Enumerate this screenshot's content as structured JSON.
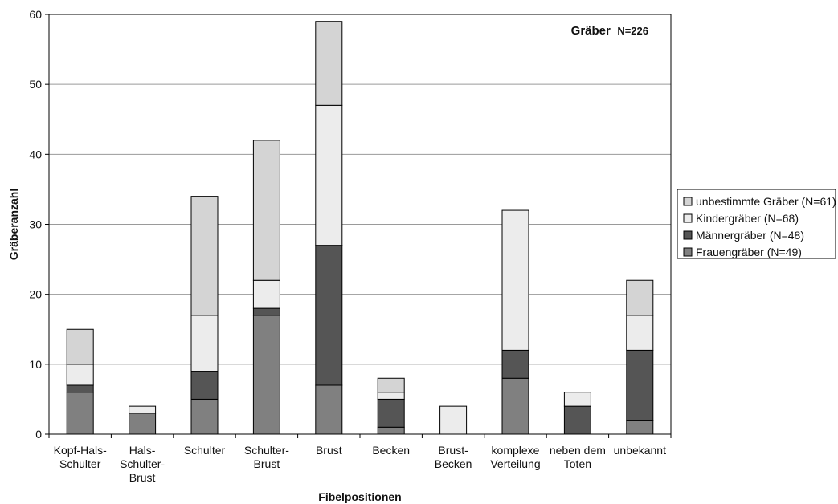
{
  "chart_data": {
    "type": "bar",
    "stacked": true,
    "categories": [
      [
        "Kopf-Hals-",
        "Schulter"
      ],
      [
        "Hals-",
        "Schulter-",
        "Brust"
      ],
      [
        "Schulter"
      ],
      [
        "Schulter-",
        "Brust"
      ],
      [
        "Brust"
      ],
      [
        "Becken"
      ],
      [
        "Brust-",
        "Becken"
      ],
      [
        "komplexe",
        "Verteilung"
      ],
      [
        "neben dem",
        "Toten"
      ],
      [
        "unbekannt"
      ]
    ],
    "series": [
      {
        "name": "Frauengräber (N=49)",
        "color": "#808080",
        "values": [
          6,
          3,
          5,
          17,
          7,
          1,
          0,
          8,
          0,
          2
        ]
      },
      {
        "name": "Männergräber (N=48)",
        "color": "#555555",
        "values": [
          1,
          0,
          4,
          1,
          20,
          4,
          0,
          4,
          4,
          10
        ]
      },
      {
        "name": "Kindergräber (N=68)",
        "color": "#ececec",
        "values": [
          3,
          1,
          8,
          4,
          20,
          1,
          4,
          20,
          2,
          5
        ]
      },
      {
        "name": "unbestimmte Gräber (N=61)",
        "color": "#d4d4d4",
        "values": [
          5,
          0,
          17,
          20,
          12,
          2,
          0,
          0,
          0,
          5
        ]
      }
    ],
    "legend_order": [
      3,
      2,
      1,
      0
    ],
    "legend_position": "right",
    "xlabel": "Fibelpositionen",
    "ylabel": "Gräberanzahl",
    "ylim": [
      0,
      60
    ],
    "yticks": [
      0,
      10,
      20,
      30,
      40,
      50,
      60
    ],
    "grid": true,
    "annotation": {
      "main": "Gräber",
      "sub": "N=226",
      "position": "top-right"
    }
  }
}
